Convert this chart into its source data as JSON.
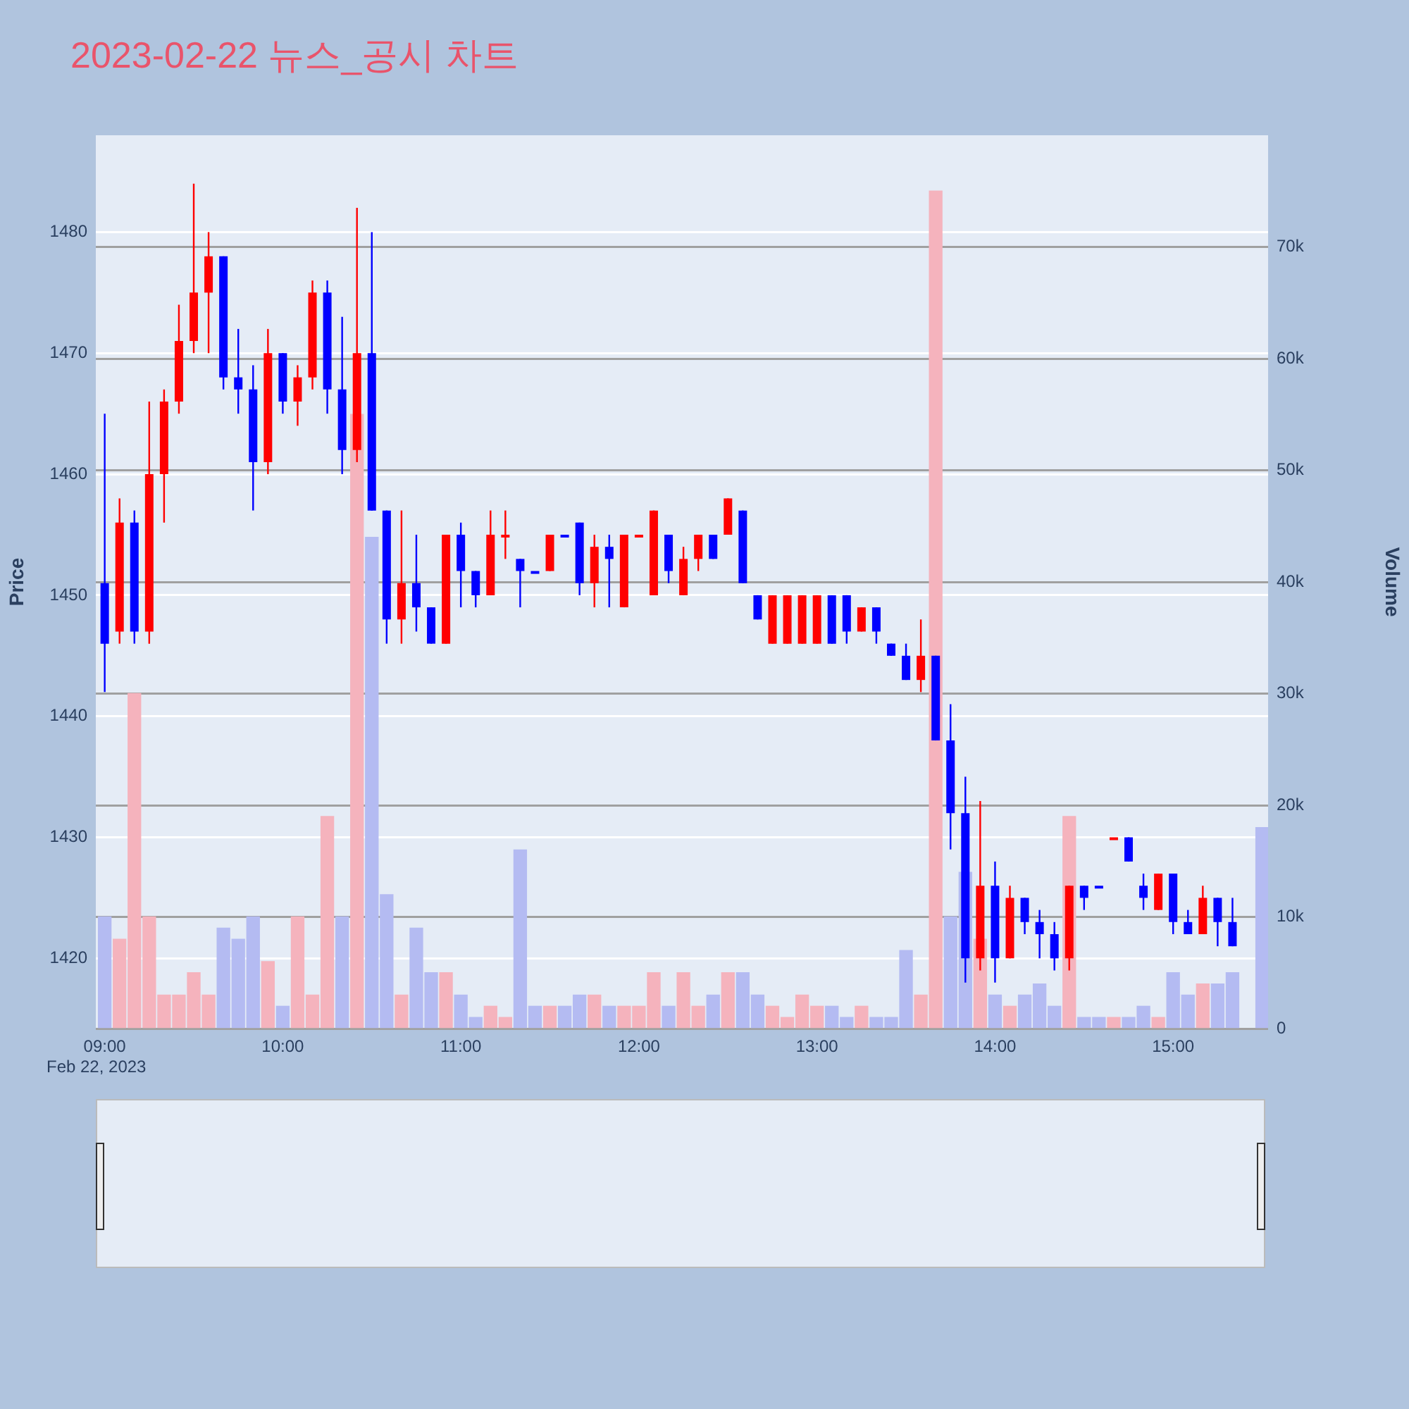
{
  "chart_data": {
    "type": "candlestick",
    "title": "2023-02-22 뉴스_공시 차트",
    "ylabel": "Price",
    "y2label": "Volume",
    "annotations": [
      "Feb 22, 2023"
    ],
    "x": [
      "2023-02-22T09:00",
      "2023-02-22T09:05",
      "2023-02-22T09:10",
      "2023-02-22T09:15",
      "2023-02-22T09:20",
      "2023-02-22T09:25",
      "2023-02-22T09:30",
      "2023-02-22T09:35",
      "2023-02-22T09:40",
      "2023-02-22T09:45",
      "2023-02-22T09:50",
      "2023-02-22T09:55",
      "2023-02-22T10:00",
      "2023-02-22T10:05",
      "2023-02-22T10:10",
      "2023-02-22T10:15",
      "2023-02-22T10:20",
      "2023-02-22T10:25",
      "2023-02-22T10:30",
      "2023-02-22T10:35",
      "2023-02-22T10:40",
      "2023-02-22T10:45",
      "2023-02-22T10:50",
      "2023-02-22T10:55",
      "2023-02-22T11:00",
      "2023-02-22T11:05",
      "2023-02-22T11:10",
      "2023-02-22T11:15",
      "2023-02-22T11:20",
      "2023-02-22T11:25",
      "2023-02-22T11:30",
      "2023-02-22T11:35",
      "2023-02-22T11:40",
      "2023-02-22T11:45",
      "2023-02-22T11:50",
      "2023-02-22T11:55",
      "2023-02-22T12:00",
      "2023-02-22T12:05",
      "2023-02-22T12:10",
      "2023-02-22T12:15",
      "2023-02-22T12:20",
      "2023-02-22T12:25",
      "2023-02-22T12:30",
      "2023-02-22T12:35",
      "2023-02-22T12:40",
      "2023-02-22T12:45",
      "2023-02-22T12:50",
      "2023-02-22T12:55",
      "2023-02-22T13:00",
      "2023-02-22T13:05",
      "2023-02-22T13:10",
      "2023-02-22T13:15",
      "2023-02-22T13:20",
      "2023-02-22T13:25",
      "2023-02-22T13:30",
      "2023-02-22T13:35",
      "2023-02-22T13:40",
      "2023-02-22T13:45",
      "2023-02-22T13:50",
      "2023-02-22T13:55",
      "2023-02-22T14:00",
      "2023-02-22T14:05",
      "2023-02-22T14:10",
      "2023-02-22T14:15",
      "2023-02-22T14:20",
      "2023-02-22T14:25",
      "2023-02-22T14:30",
      "2023-02-22T14:35",
      "2023-02-22T14:40",
      "2023-02-22T14:45",
      "2023-02-22T14:50",
      "2023-02-22T14:55",
      "2023-02-22T15:00",
      "2023-02-22T15:05",
      "2023-02-22T15:10",
      "2023-02-22T15:15",
      "2023-02-22T15:20"
    ],
    "ohlc": [
      [
        1451,
        1465,
        1442,
        1446
      ],
      [
        1447,
        1458,
        1446,
        1456
      ],
      [
        1456,
        1457,
        1446,
        1447
      ],
      [
        1447,
        1466,
        1446,
        1460
      ],
      [
        1460,
        1467,
        1456,
        1466
      ],
      [
        1466,
        1474,
        1465,
        1471
      ],
      [
        1471,
        1484,
        1470,
        1475
      ],
      [
        1475,
        1480,
        1470,
        1478
      ],
      [
        1478,
        1478,
        1467,
        1468
      ],
      [
        1468,
        1472,
        1465,
        1467
      ],
      [
        1467,
        1469,
        1457,
        1461
      ],
      [
        1461,
        1472,
        1460,
        1470
      ],
      [
        1470,
        1470,
        1465,
        1466
      ],
      [
        1466,
        1469,
        1464,
        1468
      ],
      [
        1468,
        1476,
        1467,
        1475
      ],
      [
        1475,
        1476,
        1465,
        1467
      ],
      [
        1467,
        1473,
        1460,
        1462
      ],
      [
        1462,
        1482,
        1461,
        1470
      ],
      [
        1470,
        1480,
        1457,
        1457
      ],
      [
        1457,
        1457,
        1446,
        1448
      ],
      [
        1448,
        1457,
        1446,
        1451
      ],
      [
        1451,
        1455,
        1447,
        1449
      ],
      [
        1449,
        1449,
        1446,
        1446
      ],
      [
        1446,
        1455,
        1446,
        1455
      ],
      [
        1455,
        1456,
        1449,
        1452
      ],
      [
        1452,
        1452,
        1449,
        1450
      ],
      [
        1450,
        1457,
        1450,
        1455
      ],
      [
        1455,
        1457,
        1453,
        1455
      ],
      [
        1453,
        1453,
        1449,
        1452
      ],
      [
        1452,
        1452,
        1452,
        1452
      ],
      [
        1452,
        1455,
        1452,
        1455
      ],
      [
        1455,
        1455,
        1455,
        1455
      ],
      [
        1456,
        1456,
        1450,
        1451
      ],
      [
        1451,
        1455,
        1449,
        1454
      ],
      [
        1454,
        1455,
        1449,
        1453
      ],
      [
        1449,
        1455,
        1449,
        1455
      ],
      [
        1455,
        1455,
        1455,
        1455
      ],
      [
        1450,
        1457,
        1450,
        1457
      ],
      [
        1455,
        1455,
        1451,
        1452
      ],
      [
        1450,
        1454,
        1450,
        1453
      ],
      [
        1453,
        1455,
        1452,
        1455
      ],
      [
        1455,
        1455,
        1453,
        1453
      ],
      [
        1455,
        1458,
        1455,
        1458
      ],
      [
        1457,
        1457,
        1451,
        1451
      ],
      [
        1450,
        1450,
        1448,
        1448
      ],
      [
        1446,
        1450,
        1446,
        1450
      ],
      [
        1446,
        1450,
        1446,
        1450
      ],
      [
        1446,
        1450,
        1446,
        1450
      ],
      [
        1446,
        1450,
        1446,
        1450
      ],
      [
        1450,
        1450,
        1446,
        1446
      ],
      [
        1450,
        1450,
        1446,
        1447
      ],
      [
        1447,
        1449,
        1447,
        1449
      ],
      [
        1449,
        1449,
        1446,
        1447
      ],
      [
        1446,
        1446,
        1445,
        1445
      ],
      [
        1445,
        1446,
        1443,
        1443
      ],
      [
        1443,
        1448,
        1442,
        1445
      ],
      [
        1445,
        1445,
        1438,
        1438
      ],
      [
        1438,
        1441,
        1429,
        1432
      ],
      [
        1432,
        1435,
        1418,
        1420
      ],
      [
        1420,
        1433,
        1419,
        1426
      ],
      [
        1426,
        1428,
        1418,
        1420
      ],
      [
        1420,
        1426,
        1420,
        1425
      ],
      [
        1425,
        1425,
        1422,
        1423
      ],
      [
        1423,
        1424,
        1420,
        1422
      ],
      [
        1422,
        1423,
        1419,
        1420
      ],
      [
        1420,
        1426,
        1419,
        1426
      ],
      [
        1426,
        1426,
        1424,
        1425
      ],
      [
        1426,
        1426,
        1426,
        1426
      ],
      [
        1430,
        1430,
        1430,
        1430
      ],
      [
        1430,
        1430,
        1428,
        1428
      ],
      [
        1426,
        1427,
        1424,
        1425
      ],
      [
        1424,
        1427,
        1424,
        1427
      ],
      [
        1427,
        1427,
        1422,
        1423
      ],
      [
        1423,
        1424,
        1422,
        1422
      ],
      [
        1422,
        1426,
        1422,
        1425
      ],
      [
        1425,
        1425,
        1421,
        1423
      ],
      [
        1423,
        1425,
        1421,
        1421
      ]
    ],
    "colors": [
      "#0000ff",
      "#ff0000",
      "#0000ff",
      "#ff0000",
      "#ff0000",
      "#ff0000",
      "#ff0000",
      "#ff0000",
      "#0000ff",
      "#0000ff",
      "#0000ff",
      "#ff0000",
      "#0000ff",
      "#ff0000",
      "#ff0000",
      "#0000ff",
      "#0000ff",
      "#ff0000",
      "#0000ff",
      "#0000ff",
      "#ff0000",
      "#0000ff",
      "#0000ff",
      "#ff0000",
      "#0000ff",
      "#0000ff",
      "#ff0000",
      "#ff0000",
      "#0000ff",
      "#0000ff",
      "#ff0000",
      "#0000ff",
      "#0000ff",
      "#ff0000",
      "#0000ff",
      "#ff0000",
      "#ff0000",
      "#ff0000",
      "#0000ff",
      "#ff0000",
      "#ff0000",
      "#0000ff",
      "#ff0000",
      "#0000ff",
      "#0000ff",
      "#ff0000",
      "#ff0000",
      "#ff0000",
      "#ff0000",
      "#0000ff",
      "#0000ff",
      "#ff0000",
      "#0000ff",
      "#0000ff",
      "#0000ff",
      "#ff0000",
      "#0000ff",
      "#0000ff",
      "#0000ff",
      "#ff0000",
      "#0000ff",
      "#ff0000",
      "#0000ff",
      "#0000ff",
      "#0000ff",
      "#ff0000",
      "#0000ff",
      "#0000ff",
      "#ff0000",
      "#0000ff",
      "#0000ff",
      "#ff0000",
      "#0000ff",
      "#0000ff",
      "#ff0000",
      "#0000ff",
      "#0000ff"
    ],
    "series": [
      {
        "type": "bar",
        "axis": "y2",
        "x": [
          "2023-02-22T09:00",
          "2023-02-22T09:05",
          "2023-02-22T09:10",
          "2023-02-22T09:15",
          "2023-02-22T09:20",
          "2023-02-22T09:25",
          "2023-02-22T09:30",
          "2023-02-22T09:35",
          "2023-02-22T09:40",
          "2023-02-22T09:45",
          "2023-02-22T09:50",
          "2023-02-22T09:55",
          "2023-02-22T10:00",
          "2023-02-22T10:05",
          "2023-02-22T10:10",
          "2023-02-22T10:15",
          "2023-02-22T10:20",
          "2023-02-22T10:25",
          "2023-02-22T10:30",
          "2023-02-22T10:35",
          "2023-02-22T10:40",
          "2023-02-22T10:45",
          "2023-02-22T10:50",
          "2023-02-22T10:55",
          "2023-02-22T11:00",
          "2023-02-22T11:05",
          "2023-02-22T11:10",
          "2023-02-22T11:15",
          "2023-02-22T11:20",
          "2023-02-22T11:25",
          "2023-02-22T11:30",
          "2023-02-22T11:35",
          "2023-02-22T11:40",
          "2023-02-22T11:45",
          "2023-02-22T11:50",
          "2023-02-22T11:55",
          "2023-02-22T12:00",
          "2023-02-22T12:05",
          "2023-02-22T12:10",
          "2023-02-22T12:15",
          "2023-02-22T12:20",
          "2023-02-22T12:25",
          "2023-02-22T12:30",
          "2023-02-22T12:35",
          "2023-02-22T12:40",
          "2023-02-22T12:45",
          "2023-02-22T12:50",
          "2023-02-22T12:55",
          "2023-02-22T13:00",
          "2023-02-22T13:05",
          "2023-02-22T13:10",
          "2023-02-22T13:15",
          "2023-02-22T13:20",
          "2023-02-22T13:25",
          "2023-02-22T13:30",
          "2023-02-22T13:35",
          "2023-02-22T13:40",
          "2023-02-22T13:45",
          "2023-02-22T13:50",
          "2023-02-22T13:55",
          "2023-02-22T14:00",
          "2023-02-22T14:05",
          "2023-02-22T14:10",
          "2023-02-22T14:15",
          "2023-02-22T14:20",
          "2023-02-22T14:25",
          "2023-02-22T14:30",
          "2023-02-22T14:35",
          "2023-02-22T14:40",
          "2023-02-22T14:45",
          "2023-02-22T14:50",
          "2023-02-22T14:55",
          "2023-02-22T15:00",
          "2023-02-22T15:05",
          "2023-02-22T15:10",
          "2023-02-22T15:15",
          "2023-02-22T15:20",
          "2023-02-22T15:30"
        ],
        "values": [
          10000,
          8000,
          30000,
          10000,
          3000,
          3000,
          5000,
          3000,
          9000,
          8000,
          10000,
          6000,
          2000,
          10000,
          3000,
          19000,
          10000,
          55000,
          44000,
          12000,
          3000,
          9000,
          5000,
          5000,
          3000,
          1000,
          2000,
          1000,
          16000,
          2000,
          2000,
          2000,
          3000,
          3000,
          2000,
          2000,
          2000,
          5000,
          2000,
          5000,
          2000,
          3000,
          5000,
          5000,
          3000,
          2000,
          1000,
          3000,
          2000,
          2000,
          1000,
          2000,
          1000,
          1000,
          7000,
          3000,
          75000,
          10000,
          14000,
          8000,
          3000,
          2000,
          3000,
          4000,
          2000,
          19000,
          1000,
          1000,
          1000,
          1000,
          2000,
          1000,
          5000,
          3000,
          4000,
          4000,
          5000,
          18000
        ],
        "colors": [
          "#b4bbf2",
          "#f5b3bd",
          "#f5b3bd",
          "#f5b3bd",
          "#f5b3bd",
          "#f5b3bd",
          "#f5b3bd",
          "#f5b3bd",
          "#b4bbf2",
          "#b4bbf2",
          "#b4bbf2",
          "#f5b3bd",
          "#b4bbf2",
          "#f5b3bd",
          "#f5b3bd",
          "#f5b3bd",
          "#b4bbf2",
          "#f5b3bd",
          "#b4bbf2",
          "#b4bbf2",
          "#f5b3bd",
          "#b4bbf2",
          "#b4bbf2",
          "#f5b3bd",
          "#b4bbf2",
          "#b4bbf2",
          "#f5b3bd",
          "#f5b3bd",
          "#b4bbf2",
          "#b4bbf2",
          "#f5b3bd",
          "#b4bbf2",
          "#b4bbf2",
          "#f5b3bd",
          "#b4bbf2",
          "#f5b3bd",
          "#f5b3bd",
          "#f5b3bd",
          "#b4bbf2",
          "#f5b3bd",
          "#f5b3bd",
          "#b4bbf2",
          "#f5b3bd",
          "#b4bbf2",
          "#b4bbf2",
          "#f5b3bd",
          "#f5b3bd",
          "#f5b3bd",
          "#f5b3bd",
          "#b4bbf2",
          "#b4bbf2",
          "#f5b3bd",
          "#b4bbf2",
          "#b4bbf2",
          "#b4bbf2",
          "#f5b3bd",
          "#f5b3bd",
          "#b4bbf2",
          "#b4bbf2",
          "#f5b3bd",
          "#b4bbf2",
          "#f5b3bd",
          "#b4bbf2",
          "#b4bbf2",
          "#b4bbf2",
          "#f5b3bd",
          "#b4bbf2",
          "#b4bbf2",
          "#f5b3bd",
          "#b4bbf2",
          "#b4bbf2",
          "#f5b3bd",
          "#b4bbf2",
          "#b4bbf2",
          "#f5b3bd",
          "#b4bbf2",
          "#b4bbf2",
          "#b4bbf2"
        ]
      }
    ],
    "xlim": [
      "2023-02-22T08:57",
      "2023-02-22T15:32"
    ],
    "xticks": [
      {
        "value": "2023-02-22T09:00",
        "label": "09:00"
      },
      {
        "value": "2023-02-22T10:00",
        "label": "10:00"
      },
      {
        "value": "2023-02-22T11:00",
        "label": "11:00"
      },
      {
        "value": "2023-02-22T12:00",
        "label": "12:00"
      },
      {
        "value": "2023-02-22T13:00",
        "label": "13:00"
      },
      {
        "value": "2023-02-22T14:00",
        "label": "14:00"
      },
      {
        "value": "2023-02-22T15:00",
        "label": "15:00"
      }
    ],
    "ylim": [
      1414.2,
      1488
    ],
    "yticks": [
      1420,
      1430,
      1440,
      1450,
      1460,
      1470,
      1480
    ],
    "y2lim": [
      0,
      80000
    ],
    "y2ticks": [
      0,
      {
        "value": 10000,
        "label": "10k"
      },
      {
        "value": 20000,
        "label": "20k"
      },
      {
        "value": 30000,
        "label": "30k"
      },
      {
        "value": 40000,
        "label": "40k"
      },
      {
        "value": 50000,
        "label": "50k"
      },
      {
        "value": 60000,
        "label": "60k"
      },
      {
        "value": 70000,
        "label": "70k"
      }
    ],
    "grid": "y"
  }
}
